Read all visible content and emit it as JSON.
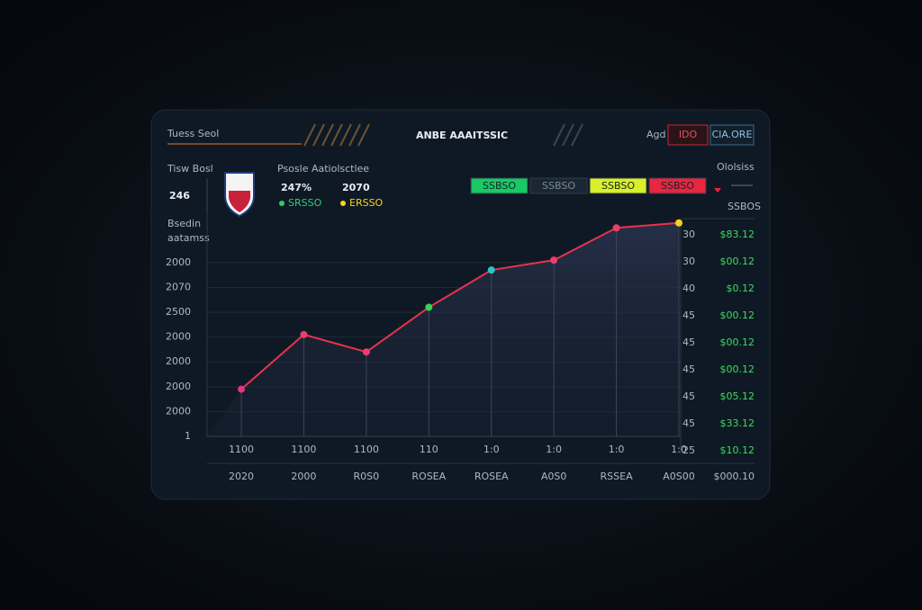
{
  "header": {
    "left_title": "Tuess Seol",
    "title": "ANBE AAAITSSIC",
    "label": "Agd",
    "badges": [
      "IDO",
      "ClA.ORE"
    ]
  },
  "summary": {
    "team_label": "Tisw Bosl",
    "team_value": "246",
    "stats_label": "Psosle Aatiolsctlee",
    "stats": [
      {
        "value": "247%",
        "label": "SRSSO",
        "color": "#27d36a"
      },
      {
        "value": "2070",
        "label": "ERSSO",
        "color": "#f5d316"
      }
    ],
    "axis_caption": [
      "Bsedin",
      "aatamss"
    ]
  },
  "filters": [
    {
      "label": "SSBSO",
      "color": "#18c964"
    },
    {
      "label": "SSBSO",
      "color": "#1a2633"
    },
    {
      "label": "SSBSO",
      "color": "#d8ef2a"
    },
    {
      "label": "SSBSO",
      "color": "#e8263e"
    }
  ],
  "right_panel": {
    "title": "Ololsiss",
    "header": "SSBOS",
    "rows": [
      [
        "30",
        "$83.12"
      ],
      [
        "30",
        "$00.12"
      ],
      [
        "40",
        "$0.12"
      ],
      [
        "45",
        "$00.12"
      ],
      [
        "45",
        "$00.12"
      ],
      [
        "45",
        "$00.12"
      ],
      [
        "45",
        "$05.12"
      ],
      [
        "45",
        "$33.12"
      ],
      [
        "25",
        "$10.12"
      ]
    ],
    "footer": "$000.10"
  },
  "chart_data": {
    "type": "line",
    "categories": [
      "1100",
      "1100",
      "1100",
      "110",
      "1:0",
      "1:0",
      "1:0",
      "1:0"
    ],
    "sublabels": [
      "2020",
      "2000",
      "R0S0",
      "ROSEA",
      "ROSEA",
      "A0S0",
      "RSSEA",
      "A0S00"
    ],
    "values": [
      1.9,
      4.1,
      3.4,
      5.2,
      6.7,
      7.1,
      8.4,
      8.6
    ],
    "color": "#e8334a",
    "point_colors": [
      "#e0357f",
      "#ec3e6e",
      "#ec3e6e",
      "#3ccf5a",
      "#26c6c9",
      "#ec3e6e",
      "#ec3e6e",
      "#f2d21b"
    ],
    "ylim": [
      0,
      8.7
    ],
    "yticks": [
      {
        "value": 0,
        "label": "1"
      },
      {
        "value": 1,
        "label": "2000"
      },
      {
        "value": 2,
        "label": "2000"
      },
      {
        "value": 3,
        "label": "2000"
      },
      {
        "value": 4,
        "label": "2000"
      },
      {
        "value": 5,
        "label": "2500"
      },
      {
        "value": 6,
        "label": "2070"
      },
      {
        "value": 7,
        "label": "2000"
      }
    ],
    "grid": true
  }
}
